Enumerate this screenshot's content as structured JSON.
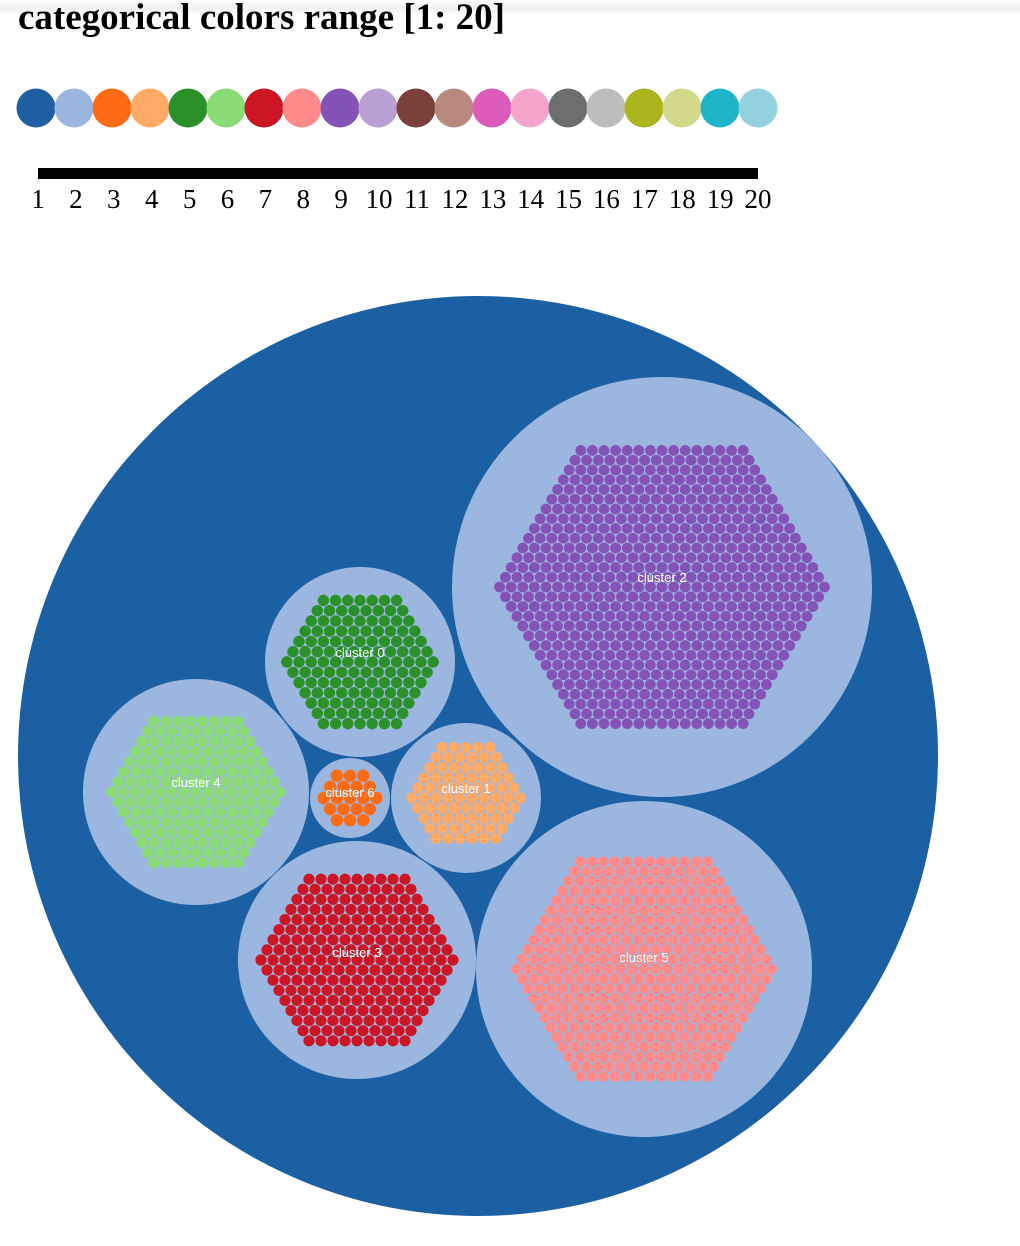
{
  "title": "categorical colors range [1: 20]",
  "palette": [
    "#1f5fa3",
    "#9bb7e0",
    "#ff6a12",
    "#ffaa66",
    "#2a9128",
    "#8bdc77",
    "#cc1626",
    "#ff8a8a",
    "#8552b8",
    "#b8a0d2",
    "#7a4138",
    "#b9897f",
    "#dc5bbc",
    "#f4a5cb",
    "#6e6e6e",
    "#bdbdbd",
    "#adb51e",
    "#d4d88a",
    "#1fb5c9",
    "#93d1e0"
  ],
  "legend_ticks": [
    "1",
    "2",
    "3",
    "4",
    "5",
    "6",
    "7",
    "8",
    "9",
    "10",
    "11",
    "12",
    "13",
    "14",
    "15",
    "16",
    "17",
    "18",
    "19",
    "20"
  ],
  "colors": {
    "root": "#1c60a4",
    "cluster_bg": "#9bb7e0"
  },
  "clusters": [
    {
      "label": "cluster 2",
      "color": "#8552b8"
    },
    {
      "label": "cluster 0",
      "color": "#2a9128"
    },
    {
      "label": "cluster 4",
      "color": "#8bdc77"
    },
    {
      "label": "cluster 6",
      "color": "#ff6a12"
    },
    {
      "label": "cluster 1",
      "color": "#ffaa66"
    },
    {
      "label": "cluster 3",
      "color": "#cc1626"
    },
    {
      "label": "cluster 5",
      "color": "#ff8a8a"
    }
  ]
}
